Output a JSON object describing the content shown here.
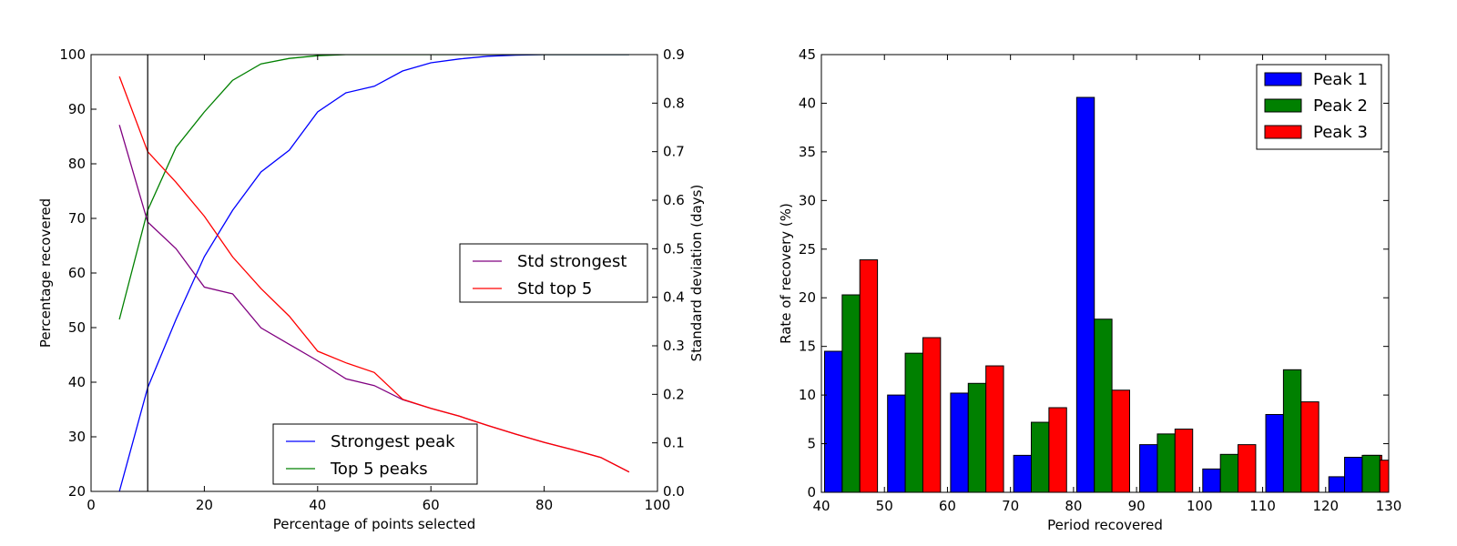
{
  "chart_data": [
    {
      "type": "line",
      "title": "",
      "xlabel": "Percentage of points selected",
      "ylabel_left": "Percentage recovered",
      "ylabel_right": "Standard deviation (days)",
      "xlim": [
        0,
        100
      ],
      "ylim_left": [
        20,
        100
      ],
      "ylim_right": [
        0.0,
        0.9
      ],
      "xticks": [
        "0",
        "20",
        "40",
        "60",
        "80",
        "100"
      ],
      "yticks_left": [
        "20",
        "30",
        "40",
        "50",
        "60",
        "70",
        "80",
        "90",
        "100"
      ],
      "yticks_right": [
        "0.0",
        "0.1",
        "0.2",
        "0.3",
        "0.4",
        "0.5",
        "0.6",
        "0.7",
        "0.8",
        "0.9"
      ],
      "vline_x": 10,
      "grid": false,
      "series": [
        {
          "name": "Strongest peak",
          "axis": "left",
          "color": "#0000ff",
          "x": [
            5,
            10,
            15,
            20,
            25,
            30,
            35,
            40,
            45,
            50,
            55,
            60,
            65,
            70,
            75,
            80,
            85,
            90,
            95
          ],
          "y": [
            20,
            39,
            51.5,
            63,
            71.5,
            78.5,
            82.5,
            89.5,
            93,
            94.2,
            97,
            98.5,
            99.2,
            99.7,
            99.9,
            100,
            100,
            100,
            100
          ]
        },
        {
          "name": "Top 5 peaks",
          "axis": "left",
          "color": "#008000",
          "x": [
            5,
            10,
            15,
            20,
            25,
            30,
            35,
            40,
            45,
            50,
            55,
            60,
            65,
            70,
            75,
            80,
            85,
            90,
            95
          ],
          "y": [
            51.5,
            71.5,
            83,
            89.5,
            95.3,
            98.3,
            99.3,
            99.8,
            100,
            100,
            100,
            100,
            100,
            100,
            100,
            100,
            100,
            100,
            100
          ]
        },
        {
          "name": "Std strongest",
          "axis": "right",
          "color": "#800080",
          "x": [
            5,
            10,
            15,
            20,
            25,
            30,
            35,
            40,
            45,
            50,
            55,
            60,
            65,
            70,
            75,
            80,
            85,
            90,
            95
          ],
          "y": [
            0.755,
            0.555,
            0.5,
            0.421,
            0.407,
            0.337,
            0.303,
            0.269,
            0.232,
            0.218,
            0.189,
            0.171,
            0.155,
            0.136,
            0.118,
            0.101,
            0.086,
            0.07,
            0.04
          ]
        },
        {
          "name": "Std top 5",
          "axis": "right",
          "color": "#ff0000",
          "x": [
            5,
            10,
            15,
            20,
            25,
            30,
            35,
            40,
            45,
            50,
            55,
            60,
            65,
            70,
            75,
            80,
            85,
            90,
            95
          ],
          "y": [
            0.855,
            0.7,
            0.637,
            0.567,
            0.483,
            0.418,
            0.361,
            0.289,
            0.265,
            0.245,
            0.19,
            0.171,
            0.155,
            0.136,
            0.118,
            0.101,
            0.086,
            0.07,
            0.04
          ]
        }
      ],
      "legends": [
        {
          "placement": "lower-center",
          "entries": [
            "Strongest peak",
            "Top 5 peaks"
          ]
        },
        {
          "placement": "center-right",
          "entries": [
            "Std strongest",
            "Std top 5"
          ]
        }
      ]
    },
    {
      "type": "bar",
      "title": "",
      "xlabel": "Period recovered",
      "ylabel": "Rate of recovery (%)",
      "xlim": [
        40,
        130
      ],
      "ylim": [
        0,
        45
      ],
      "xticks": [
        "40",
        "50",
        "60",
        "70",
        "80",
        "90",
        "100",
        "110",
        "120",
        "130"
      ],
      "yticks": [
        "0",
        "5",
        "10",
        "15",
        "20",
        "25",
        "30",
        "35",
        "40",
        "45"
      ],
      "grid": false,
      "legend_placement": "top-right",
      "bin_starts": [
        40,
        50,
        60,
        70,
        80,
        90,
        100,
        110,
        120
      ],
      "bin_width": 9,
      "series": [
        {
          "name": "Peak 1",
          "color": "#0000ff",
          "values": [
            14.5,
            10,
            10.2,
            3.8,
            40.6,
            4.9,
            2.4,
            8.0,
            1.6
          ]
        },
        {
          "name": "Peak 2",
          "color": "#008000",
          "values": [
            20.3,
            14.3,
            11.2,
            7.2,
            17.8,
            6.0,
            3.9,
            12.6,
            2.6
          ]
        },
        {
          "name": "Peak 3",
          "color": "#ff0000",
          "values": [
            23.9,
            15.9,
            13.0,
            8.7,
            10.5,
            6.5,
            4.9,
            9.3,
            3.8
          ]
        }
      ],
      "extra_bars_note": "",
      "last_partial": {
        "values": [
          3.6,
          3.8,
          3.3
        ]
      }
    }
  ]
}
